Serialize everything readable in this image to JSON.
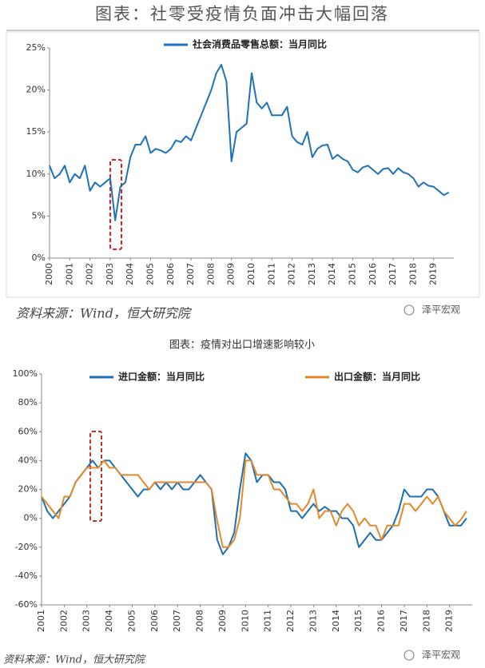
{
  "chart_data": [
    {
      "type": "line",
      "title": "图表：社零受疫情负面冲击大幅回落",
      "source": "资料来源：Wind，恒大研究院",
      "watermark": "泽平宏观",
      "x": [
        2000,
        2000.25,
        2000.5,
        2000.75,
        2001,
        2001.25,
        2001.5,
        2001.75,
        2002,
        2002.25,
        2002.5,
        2002.75,
        2003,
        2003.25,
        2003.5,
        2003.75,
        2004,
        2004.25,
        2004.5,
        2004.75,
        2005,
        2005.25,
        2005.5,
        2005.75,
        2006,
        2006.25,
        2006.5,
        2006.75,
        2007,
        2007.25,
        2007.5,
        2007.75,
        2008,
        2008.25,
        2008.5,
        2008.75,
        2009,
        2009.25,
        2009.5,
        2009.75,
        2010,
        2010.25,
        2010.5,
        2010.75,
        2011,
        2011.25,
        2011.5,
        2011.75,
        2012,
        2012.25,
        2012.5,
        2012.75,
        2013,
        2013.25,
        2013.5,
        2013.75,
        2014,
        2014.25,
        2014.5,
        2014.75,
        2015,
        2015.25,
        2015.5,
        2015.75,
        2016,
        2016.25,
        2016.5,
        2016.75,
        2017,
        2017.25,
        2017.5,
        2017.75,
        2018,
        2018.25,
        2018.5,
        2018.75,
        2019,
        2019.25,
        2019.5,
        2019.75
      ],
      "series": [
        {
          "name": "社会消费品零售总额：当月同比",
          "color": "#1f72b8",
          "values": [
            11,
            9.5,
            10,
            11,
            9,
            10,
            9.5,
            11,
            8,
            9,
            8.5,
            9,
            9.5,
            4.5,
            8.5,
            9,
            12,
            13.5,
            13.5,
            14.5,
            12.5,
            13,
            12.8,
            12.5,
            13,
            14,
            13.8,
            14.5,
            14,
            15.5,
            17,
            18.5,
            20,
            22,
            23,
            21,
            11.5,
            15,
            15.5,
            16,
            22,
            18.5,
            17.8,
            18.5,
            17,
            17,
            17,
            18,
            14.5,
            13.8,
            13.5,
            15,
            12,
            13,
            13.4,
            13.5,
            11.8,
            12.3,
            11.8,
            11.5,
            10.5,
            10.2,
            10.8,
            11,
            10.5,
            10,
            10.6,
            10.7,
            10,
            10.7,
            10.2,
            10,
            9.5,
            8.5,
            9,
            8.6,
            8.5,
            8,
            7.5,
            7.8
          ]
        }
      ],
      "xlim": [
        2000,
        2020
      ],
      "xticks": [
        2000,
        2001,
        2002,
        2003,
        2004,
        2005,
        2006,
        2007,
        2008,
        2009,
        2010,
        2011,
        2012,
        2013,
        2014,
        2015,
        2016,
        2017,
        2018,
        2019
      ],
      "ylim": [
        0,
        25
      ],
      "yticks": [
        {
          "value": 0,
          "label": "0%"
        },
        {
          "value": 5,
          "label": "5%"
        },
        {
          "value": 10,
          "label": "10%"
        },
        {
          "value": 15,
          "label": "15%"
        },
        {
          "value": 20,
          "label": "20%"
        },
        {
          "value": 25,
          "label": "25%"
        }
      ],
      "grid": false,
      "legend": "top"
    },
    {
      "type": "line",
      "title": "图表：疫情对出口增速影响较小",
      "source": "资料来源：Wind，恒大研究院",
      "watermark": "泽平宏观",
      "x": [
        2001,
        2001.25,
        2001.5,
        2001.75,
        2002,
        2002.25,
        2002.5,
        2002.75,
        2003,
        2003.25,
        2003.5,
        2003.75,
        2004,
        2004.25,
        2004.5,
        2004.75,
        2005,
        2005.25,
        2005.5,
        2005.75,
        2006,
        2006.25,
        2006.5,
        2006.75,
        2007,
        2007.25,
        2007.5,
        2007.75,
        2008,
        2008.25,
        2008.5,
        2008.75,
        2009,
        2009.25,
        2009.5,
        2009.75,
        2010,
        2010.25,
        2010.5,
        2010.75,
        2011,
        2011.25,
        2011.5,
        2011.75,
        2012,
        2012.25,
        2012.5,
        2012.75,
        2013,
        2013.25,
        2013.5,
        2013.75,
        2014,
        2014.25,
        2014.5,
        2014.75,
        2015,
        2015.25,
        2015.5,
        2015.75,
        2016,
        2016.25,
        2016.5,
        2016.75,
        2017,
        2017.25,
        2017.5,
        2017.75,
        2018,
        2018.25,
        2018.5,
        2018.75,
        2019,
        2019.25,
        2019.5,
        2019.75
      ],
      "series": [
        {
          "name": "进口金额：当月同比",
          "color": "#1f6fb0",
          "values": [
            15,
            5,
            0,
            5,
            10,
            15,
            25,
            30,
            35,
            40,
            35,
            40,
            40,
            35,
            30,
            25,
            20,
            15,
            20,
            20,
            25,
            20,
            25,
            20,
            25,
            20,
            20,
            25,
            30,
            25,
            20,
            -15,
            -25,
            -20,
            -10,
            20,
            45,
            40,
            25,
            30,
            30,
            25,
            25,
            20,
            5,
            5,
            0,
            5,
            10,
            5,
            8,
            5,
            5,
            0,
            0,
            -5,
            -20,
            -15,
            -10,
            -15,
            -15,
            -10,
            -5,
            5,
            20,
            15,
            15,
            15,
            20,
            20,
            15,
            5,
            -5,
            -5,
            -5,
            0
          ]
        },
        {
          "name": "出口金额：当月同比",
          "color": "#e08a2e",
          "values": [
            15,
            10,
            5,
            0,
            15,
            15,
            25,
            30,
            35,
            35,
            35,
            40,
            35,
            35,
            30,
            30,
            30,
            30,
            25,
            20,
            25,
            25,
            25,
            25,
            25,
            25,
            25,
            25,
            25,
            25,
            20,
            -2,
            -20,
            -20,
            -15,
            0,
            40,
            40,
            30,
            30,
            30,
            20,
            20,
            15,
            10,
            10,
            5,
            10,
            20,
            0,
            5,
            5,
            -5,
            5,
            10,
            5,
            -5,
            0,
            -5,
            -5,
            -15,
            -5,
            -5,
            -5,
            10,
            10,
            5,
            10,
            15,
            10,
            15,
            5,
            0,
            -5,
            -1,
            5
          ]
        }
      ],
      "xlim": [
        2001,
        2020
      ],
      "xticks": [
        2001,
        2002,
        2003,
        2004,
        2005,
        2006,
        2007,
        2008,
        2009,
        2010,
        2011,
        2012,
        2013,
        2014,
        2015,
        2016,
        2017,
        2018,
        2019
      ],
      "ylim": [
        -60,
        100
      ],
      "yticks": [
        {
          "value": -60,
          "label": "-60%"
        },
        {
          "value": -40,
          "label": "-40%"
        },
        {
          "value": -20,
          "label": "-20%"
        },
        {
          "value": 0,
          "label": "0%"
        },
        {
          "value": 20,
          "label": "20%"
        },
        {
          "value": 40,
          "label": "40%"
        },
        {
          "value": 60,
          "label": "60%"
        },
        {
          "value": 80,
          "label": "80%"
        },
        {
          "value": 100,
          "label": "100%"
        }
      ],
      "grid": false,
      "legend": "top"
    }
  ]
}
